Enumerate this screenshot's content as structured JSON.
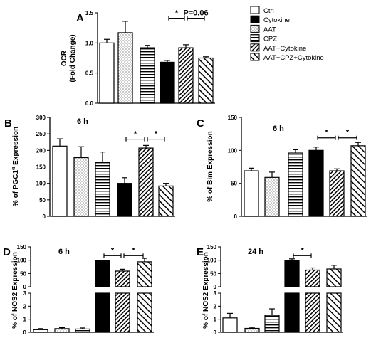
{
  "colors": {
    "cytokine": "#000000",
    "outline": "#000000",
    "background": "#ffffff"
  },
  "legend": {
    "entries": [
      {
        "name": "Ctrl",
        "pattern": "white"
      },
      {
        "name": "Cytokine",
        "pattern": "black"
      },
      {
        "name": "AAT",
        "pattern": "dots"
      },
      {
        "name": "CPZ",
        "pattern": "hlines"
      },
      {
        "name": "AAT+Cytokine",
        "pattern": "diag-dense"
      },
      {
        "name": "AAT+CPZ+Cytokine",
        "pattern": "diag-sparse"
      }
    ]
  },
  "chart_data": [
    {
      "id": "A",
      "type": "bar",
      "panel_label": "A",
      "title": "",
      "ylabel": "OCR\n(Fold Change)",
      "ylim": [
        0.0,
        1.5
      ],
      "yticks": [
        {
          "v": 0.0,
          "label": "0.0"
        },
        {
          "v": 0.5,
          "label": "0.5"
        },
        {
          "v": 1.0,
          "label": "1.0"
        },
        {
          "v": 1.5,
          "label": "1.5"
        }
      ],
      "bars": [
        {
          "group": "Ctrl",
          "pattern": "white",
          "value": 1.0,
          "error": 0.06
        },
        {
          "group": "AAT",
          "pattern": "dots",
          "value": 1.17,
          "error": 0.19
        },
        {
          "group": "CPZ",
          "pattern": "hlines",
          "value": 0.92,
          "error": 0.04
        },
        {
          "group": "Cytokine",
          "pattern": "black",
          "value": 0.68,
          "error": 0.03
        },
        {
          "group": "AAT+Cytokine",
          "pattern": "diag-dense",
          "value": 0.92,
          "error": 0.05
        },
        {
          "group": "AAT+CPZ+Cytokine",
          "pattern": "diag-sparse",
          "value": 0.75,
          "error": 0.02
        }
      ],
      "annotations": [
        {
          "from": 3,
          "to": 4,
          "text": "*",
          "y": 1.41
        },
        {
          "from": 4,
          "to": 5,
          "text": "P=0.06",
          "y": 1.41
        }
      ]
    },
    {
      "id": "B",
      "type": "bar",
      "panel_label": "B",
      "title": "6 h",
      "ylabel_main": "% of PGC1",
      "ylabel_sup": "α",
      "ylabel_end": " Expression",
      "ylim": [
        0,
        300
      ],
      "yticks": [
        {
          "v": 0,
          "label": "0"
        },
        {
          "v": 50,
          "label": "50"
        },
        {
          "v": 100,
          "label": "100"
        },
        {
          "v": 150,
          "label": "150"
        },
        {
          "v": 200,
          "label": "200"
        },
        {
          "v": 250,
          "label": "250"
        },
        {
          "v": 300,
          "label": "300"
        }
      ],
      "bars": [
        {
          "group": "Ctrl",
          "pattern": "white",
          "value": 213,
          "error": 22
        },
        {
          "group": "AAT",
          "pattern": "dots",
          "value": 178,
          "error": 33
        },
        {
          "group": "CPZ",
          "pattern": "hlines",
          "value": 163,
          "error": 32
        },
        {
          "group": "Cytokine",
          "pattern": "black",
          "value": 100,
          "error": 17
        },
        {
          "group": "AAT+Cytokine",
          "pattern": "diag-dense",
          "value": 207,
          "error": 8
        },
        {
          "group": "AAT+CPZ+Cytokine",
          "pattern": "diag-sparse",
          "value": 92,
          "error": 8
        }
      ],
      "annotations": [
        {
          "from": 3,
          "to": 4,
          "text": "*",
          "y": 234
        },
        {
          "from": 4,
          "to": 5,
          "text": "*",
          "y": 234
        }
      ]
    },
    {
      "id": "C",
      "type": "bar",
      "panel_label": "C",
      "title": "6 h",
      "ylabel": "% of Bim Expression",
      "ylim": [
        0,
        150
      ],
      "yticks": [
        {
          "v": 0,
          "label": "0"
        },
        {
          "v": 50,
          "label": "50"
        },
        {
          "v": 100,
          "label": "100"
        },
        {
          "v": 150,
          "label": "150"
        }
      ],
      "bars": [
        {
          "group": "Ctrl",
          "pattern": "white",
          "value": 69,
          "error": 4
        },
        {
          "group": "AAT",
          "pattern": "dots",
          "value": 59,
          "error": 8
        },
        {
          "group": "CPZ",
          "pattern": "hlines",
          "value": 96,
          "error": 5
        },
        {
          "group": "Cytokine",
          "pattern": "black",
          "value": 100,
          "error": 5
        },
        {
          "group": "AAT+Cytokine",
          "pattern": "diag-dense",
          "value": 69,
          "error": 3
        },
        {
          "group": "AAT+CPZ+Cytokine",
          "pattern": "diag-sparse",
          "value": 107,
          "error": 5
        }
      ],
      "annotations": [
        {
          "from": 3,
          "to": 4,
          "text": "*",
          "y": 119
        },
        {
          "from": 4,
          "to": 5,
          "text": "*",
          "y": 119
        }
      ]
    },
    {
      "id": "D",
      "type": "bar",
      "panel_label": "D",
      "title": "6 h",
      "ylabel": "% of NOS2 Expression",
      "axis_break": true,
      "lower_range": [
        0,
        3
      ],
      "upper_range": [
        0,
        150
      ],
      "yticks_lower": [
        {
          "v": 0,
          "label": "0"
        },
        {
          "v": 1,
          "label": "1"
        },
        {
          "v": 2,
          "label": "2"
        },
        {
          "v": 3,
          "label": "3"
        }
      ],
      "yticks_upper": [
        {
          "v": 0,
          "label": "0"
        },
        {
          "v": 50,
          "label": "50"
        },
        {
          "v": 100,
          "label": "100"
        },
        {
          "v": 150,
          "label": "150"
        }
      ],
      "bars": [
        {
          "group": "Ctrl",
          "pattern": "white",
          "value": 0.2,
          "error": 0.08
        },
        {
          "group": "AAT",
          "pattern": "dots",
          "value": 0.28,
          "error": 0.08
        },
        {
          "group": "CPZ",
          "pattern": "hlines",
          "value": 0.25,
          "error": 0.08
        },
        {
          "group": "Cytokine",
          "pattern": "black",
          "value": 100,
          "error": 0
        },
        {
          "group": "AAT+Cytokine",
          "pattern": "diag-dense",
          "value": 59,
          "error": 7
        },
        {
          "group": "AAT+CPZ+Cytokine",
          "pattern": "diag-sparse",
          "value": 94,
          "error": 13
        }
      ],
      "annotations": [
        {
          "from": 3,
          "to": 4,
          "text": "*",
          "y": 117
        },
        {
          "from": 4,
          "to": 5,
          "text": "*",
          "y": 117
        }
      ]
    },
    {
      "id": "E",
      "type": "bar",
      "panel_label": "E",
      "title": "24 h",
      "ylabel": "% of NOS2 Expression",
      "axis_break": true,
      "lower_range": [
        0,
        3
      ],
      "upper_range": [
        0,
        150
      ],
      "yticks_lower": [
        {
          "v": 0,
          "label": "0"
        },
        {
          "v": 1,
          "label": "1"
        },
        {
          "v": 2,
          "label": "2"
        },
        {
          "v": 3,
          "label": "3"
        }
      ],
      "yticks_upper": [
        {
          "v": 0,
          "label": "0"
        },
        {
          "v": 50,
          "label": "50"
        },
        {
          "v": 100,
          "label": "100"
        },
        {
          "v": 150,
          "label": "150"
        }
      ],
      "bars": [
        {
          "group": "Ctrl",
          "pattern": "white",
          "value": 1.1,
          "error": 0.35
        },
        {
          "group": "AAT",
          "pattern": "dots",
          "value": 0.3,
          "error": 0.08
        },
        {
          "group": "CPZ",
          "pattern": "hlines",
          "value": 1.3,
          "error": 0.5
        },
        {
          "group": "Cytokine",
          "pattern": "black",
          "value": 100,
          "error": 5
        },
        {
          "group": "AAT+Cytokine",
          "pattern": "diag-dense",
          "value": 63,
          "error": 8
        },
        {
          "group": "AAT+CPZ+Cytokine",
          "pattern": "diag-sparse",
          "value": 67,
          "error": 14
        }
      ],
      "annotations": [
        {
          "from": 3,
          "to": 4,
          "text": "*",
          "y": 117
        }
      ]
    }
  ]
}
